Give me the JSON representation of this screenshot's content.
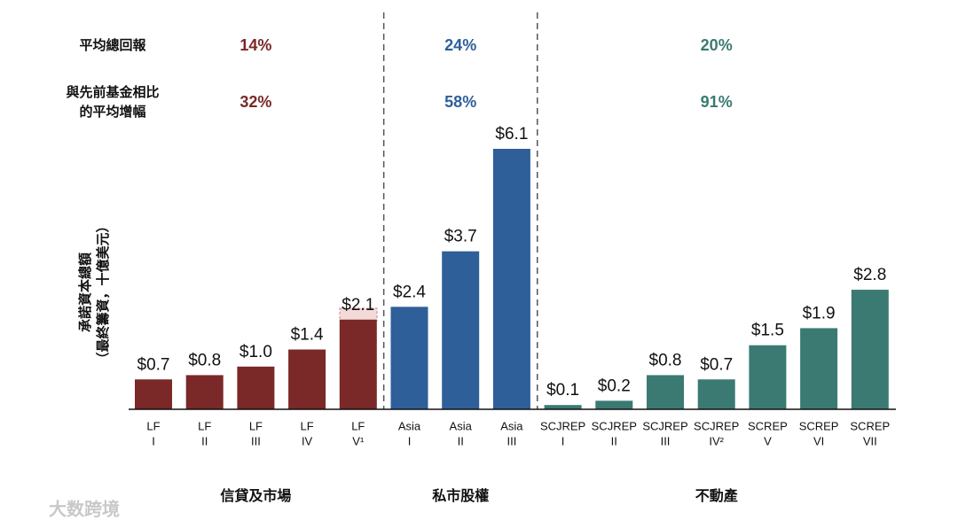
{
  "chart_data": {
    "type": "bar",
    "y_label": [
      "承諾資本總額",
      "（最終籌資，十億美元）"
    ],
    "ylim": [
      0,
      6.1
    ],
    "metrics": [
      {
        "label": [
          "平均總回報"
        ],
        "values": [
          14,
          24,
          20
        ],
        "value_labels": [
          "14%",
          "24%",
          "20%"
        ]
      },
      {
        "label": [
          "與先前基金相比",
          "的平均增幅"
        ],
        "values": [
          32,
          58,
          91
        ],
        "value_labels": [
          "32%",
          "58%",
          "91%"
        ]
      }
    ],
    "groups": [
      {
        "name": "信貸及市場",
        "color": "#7a2828",
        "categories": [
          [
            "LF",
            "I"
          ],
          [
            "LF",
            "II"
          ],
          [
            "LF",
            "III"
          ],
          [
            "LF",
            "IV"
          ],
          [
            "LF",
            "V¹"
          ]
        ],
        "values": [
          0.7,
          0.8,
          1.0,
          1.4,
          2.1
        ],
        "value_labels": [
          "$0.7",
          "$0.8",
          "$1.0",
          "$1.4",
          "$2.1"
        ]
      },
      {
        "name": "私市股權",
        "color": "#2e5f99",
        "categories": [
          [
            "Asia",
            "I"
          ],
          [
            "Asia",
            "II"
          ],
          [
            "Asia",
            "III"
          ]
        ],
        "values": [
          2.4,
          3.7,
          6.1
        ],
        "value_labels": [
          "$2.4",
          "$3.7",
          "$6.1"
        ]
      },
      {
        "name": "不動產",
        "color": "#3a7a72",
        "categories": [
          [
            "SCJREP",
            "I"
          ],
          [
            "SCJREP",
            "II"
          ],
          [
            "SCJREP",
            "III"
          ],
          [
            "SCJREP",
            "IV²"
          ],
          [
            "SCREP",
            "V"
          ],
          [
            "SCREP",
            "VI"
          ],
          [
            "SCREP",
            "VII"
          ]
        ],
        "values": [
          0.1,
          0.2,
          0.8,
          0.7,
          1.5,
          1.9,
          2.8
        ],
        "value_labels": [
          "$0.1",
          "$0.2",
          "$0.8",
          "$0.7",
          "$1.5",
          "$1.9",
          "$2.8"
        ]
      }
    ],
    "watermark": "大数跨境"
  }
}
